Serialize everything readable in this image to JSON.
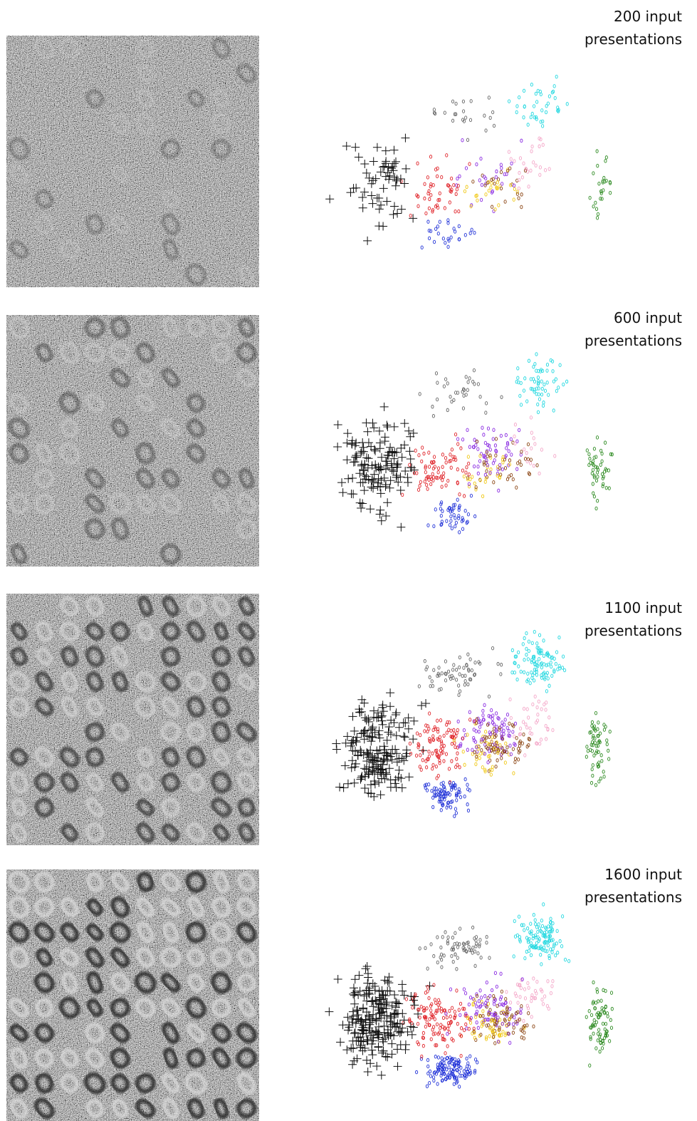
{
  "panels": [
    {
      "label": [
        "200  input",
        "presentations"
      ]
    },
    {
      "label": [
        "600  input",
        "presentations"
      ]
    },
    {
      "label": [
        "1100  input",
        "presentations"
      ]
    },
    {
      "label": [
        "1600  input",
        "presentations"
      ]
    }
  ]
}
